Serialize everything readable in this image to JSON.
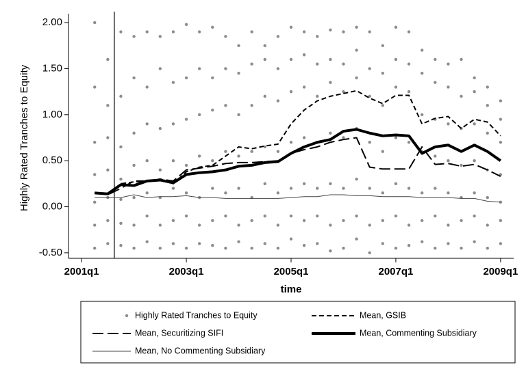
{
  "chart_data": {
    "type": "scatter-line",
    "y_label": "Highly Rated Tranches to Equity",
    "x_label": "time",
    "xlim": [
      -1,
      33
    ],
    "xticks": [
      {
        "value": 0,
        "label": "2001q1"
      },
      {
        "value": 8,
        "label": "2003q1"
      },
      {
        "value": 16,
        "label": "2005q1"
      },
      {
        "value": 24,
        "label": "2007q1"
      },
      {
        "value": 32,
        "label": "2009q1"
      }
    ],
    "ylim": [
      -0.56,
      2.06
    ],
    "yticks": [
      {
        "value": -0.5,
        "label": "-0.50"
      },
      {
        "value": 0,
        "label": "0.00"
      },
      {
        "value": 0.5,
        "label": "0.50"
      },
      {
        "value": 1,
        "label": "1.00"
      },
      {
        "value": 1.5,
        "label": "1.50"
      },
      {
        "value": 2,
        "label": "2.00"
      }
    ],
    "xline": 2.5,
    "grid": false,
    "legend": "bottom",
    "series": [
      {
        "name": "Highly Rated Tranches to Equity",
        "kind": "points",
        "color": "#8c8c8c",
        "x": [
          1,
          1,
          1,
          1,
          1,
          1,
          1,
          2,
          2,
          2,
          2,
          2,
          2,
          2,
          3,
          3,
          3,
          3,
          3,
          3,
          3,
          4,
          4,
          4,
          4,
          4,
          4,
          4,
          5,
          5,
          5,
          5,
          5,
          5,
          5,
          6,
          6,
          6,
          6,
          6,
          6,
          6,
          7,
          7,
          7,
          7,
          7,
          7,
          7,
          8,
          8,
          8,
          8,
          8,
          8,
          8,
          9,
          9,
          9,
          9,
          9,
          9,
          9,
          10,
          10,
          10,
          10,
          10,
          10,
          10,
          11,
          11,
          11,
          11,
          11,
          11,
          11,
          12,
          12,
          12,
          12,
          12,
          12,
          12,
          13,
          13,
          13,
          13,
          13,
          13,
          13,
          14,
          14,
          14,
          14,
          14,
          14,
          14,
          15,
          15,
          15,
          15,
          15,
          15,
          15,
          16,
          16,
          16,
          16,
          16,
          16,
          16,
          17,
          17,
          17,
          17,
          17,
          17,
          17,
          18,
          18,
          18,
          18,
          18,
          18,
          18,
          19,
          19,
          19,
          19,
          19,
          19,
          19,
          20,
          20,
          20,
          20,
          20,
          20,
          20,
          21,
          21,
          21,
          21,
          21,
          21,
          21,
          22,
          22,
          22,
          22,
          22,
          22,
          22,
          23,
          23,
          23,
          23,
          23,
          23,
          23,
          24,
          24,
          24,
          24,
          24,
          24,
          24,
          25,
          25,
          25,
          25,
          25,
          25,
          25,
          26,
          26,
          26,
          26,
          26,
          26,
          26,
          27,
          27,
          27,
          27,
          27,
          27,
          27,
          28,
          28,
          28,
          28,
          28,
          28,
          28,
          29,
          29,
          29,
          29,
          29,
          29,
          29,
          30,
          30,
          30,
          30,
          30,
          30,
          30,
          31,
          31,
          31,
          31,
          31,
          31,
          31,
          32,
          32,
          32,
          32,
          32,
          32,
          32
        ],
        "values": [
          -0.45,
          -0.2,
          0.05,
          0.35,
          0.7,
          1.3,
          2.0,
          -0.4,
          -0.15,
          0.1,
          0.4,
          0.75,
          1.1,
          1.6,
          -0.42,
          -0.18,
          0.08,
          0.3,
          0.65,
          1.2,
          1.9,
          -0.45,
          -0.2,
          0.1,
          0.45,
          0.8,
          1.4,
          1.85,
          -0.38,
          -0.1,
          0.15,
          0.5,
          0.9,
          1.3,
          1.9,
          -0.45,
          -0.2,
          0.1,
          0.4,
          0.85,
          1.5,
          1.85,
          -0.4,
          -0.15,
          0.2,
          0.5,
          0.9,
          1.35,
          1.9,
          -0.45,
          -0.1,
          0.15,
          0.45,
          0.95,
          1.4,
          1.98,
          -0.4,
          -0.2,
          0.1,
          0.55,
          1.0,
          1.5,
          1.9,
          -0.42,
          -0.15,
          0.2,
          0.5,
          1.05,
          1.4,
          1.95,
          -0.45,
          -0.1,
          0.15,
          0.6,
          1.1,
          1.5,
          1.85,
          -0.38,
          -0.2,
          0.2,
          0.55,
          1.0,
          1.45,
          1.75,
          -0.45,
          -0.15,
          0.1,
          0.6,
          1.1,
          1.55,
          1.9,
          -0.4,
          -0.1,
          0.25,
          0.65,
          1.2,
          1.6,
          1.75,
          -0.45,
          -0.2,
          0.15,
          0.6,
          1.15,
          1.5,
          1.85,
          -0.35,
          -0.1,
          0.2,
          0.7,
          1.25,
          1.6,
          1.95,
          -0.42,
          -0.15,
          0.25,
          0.75,
          1.3,
          1.65,
          1.9,
          -0.4,
          -0.1,
          0.2,
          0.7,
          1.2,
          1.55,
          1.85,
          -0.48,
          -0.2,
          0.25,
          0.8,
          1.35,
          1.6,
          1.92,
          -0.45,
          -0.15,
          0.2,
          0.75,
          1.25,
          1.55,
          1.9,
          -0.35,
          -0.1,
          0.3,
          0.85,
          1.4,
          1.7,
          1.95,
          -0.5,
          -0.2,
          0.2,
          0.7,
          1.2,
          1.5,
          1.9,
          -0.4,
          -0.15,
          0.15,
          0.6,
          1.1,
          1.45,
          1.75,
          -0.45,
          -0.1,
          0.25,
          0.75,
          1.3,
          1.6,
          1.95,
          -0.42,
          -0.2,
          0.2,
          0.7,
          1.25,
          1.55,
          1.9,
          -0.38,
          -0.15,
          0.15,
          0.6,
          1.0,
          1.45,
          1.7,
          -0.45,
          -0.1,
          0.2,
          0.55,
          0.95,
          1.35,
          1.6,
          -0.4,
          -0.2,
          0.15,
          0.5,
          0.9,
          1.3,
          1.55,
          -0.45,
          -0.15,
          0.1,
          0.45,
          0.85,
          1.2,
          1.6,
          -0.38,
          -0.1,
          0.15,
          0.5,
          0.9,
          1.25,
          1.4,
          -0.45,
          -0.2,
          0.1,
          0.4,
          0.8,
          1.1,
          1.3,
          -0.4,
          -0.15,
          0.05,
          0.35,
          0.7,
          0.95,
          1.15
        ]
      },
      {
        "name": "Mean, GSIB",
        "kind": "line",
        "color": "#000000",
        "dash": "short",
        "width": 2,
        "x": [
          1,
          2,
          3,
          4,
          5,
          6,
          7,
          8,
          9,
          10,
          11,
          12,
          13,
          14,
          15,
          16,
          17,
          18,
          19,
          20,
          21,
          22,
          23,
          24,
          25,
          26,
          27,
          28,
          29,
          30,
          31,
          32
        ],
        "values": [
          0.15,
          0.14,
          0.25,
          0.27,
          0.28,
          0.3,
          0.25,
          0.38,
          0.43,
          0.45,
          0.55,
          0.65,
          0.63,
          0.66,
          0.68,
          0.9,
          1.05,
          1.15,
          1.2,
          1.23,
          1.26,
          1.18,
          1.12,
          1.21,
          1.21,
          0.9,
          0.96,
          0.98,
          0.85,
          0.95,
          0.92,
          0.77
        ]
      },
      {
        "name": "Mean, Securitizing SIFI",
        "kind": "line",
        "color": "#000000",
        "dash": "long",
        "width": 2,
        "x": [
          1,
          2,
          3,
          4,
          5,
          6,
          7,
          8,
          9,
          10,
          11,
          12,
          13,
          14,
          15,
          16,
          17,
          18,
          19,
          20,
          21,
          22,
          23,
          24,
          25,
          26,
          27,
          28,
          29,
          30,
          31,
          32
        ],
        "values": [
          0.15,
          0.13,
          0.2,
          0.28,
          0.28,
          0.3,
          0.28,
          0.4,
          0.42,
          0.44,
          0.47,
          0.48,
          0.48,
          0.49,
          0.5,
          0.58,
          0.62,
          0.65,
          0.7,
          0.73,
          0.75,
          0.43,
          0.41,
          0.41,
          0.41,
          0.65,
          0.46,
          0.47,
          0.44,
          0.46,
          0.4,
          0.33
        ]
      },
      {
        "name": "Mean, Commenting Subsidiary",
        "kind": "line",
        "color": "#000000",
        "dash": "solid",
        "width": 4,
        "x": [
          1,
          2,
          3,
          4,
          5,
          6,
          7,
          8,
          9,
          10,
          11,
          12,
          13,
          14,
          15,
          16,
          17,
          18,
          19,
          20,
          21,
          22,
          23,
          24,
          25,
          26,
          27,
          28,
          29,
          30,
          31,
          32
        ],
        "values": [
          0.15,
          0.14,
          0.24,
          0.23,
          0.28,
          0.29,
          0.26,
          0.35,
          0.37,
          0.38,
          0.4,
          0.44,
          0.45,
          0.48,
          0.49,
          0.58,
          0.65,
          0.7,
          0.73,
          0.82,
          0.84,
          0.8,
          0.77,
          0.78,
          0.77,
          0.58,
          0.65,
          0.67,
          0.6,
          0.67,
          0.6,
          0.5
        ]
      },
      {
        "name": "Mean, No Commenting Subsidiary",
        "kind": "line",
        "color": "#444444",
        "dash": "solid",
        "width": 1,
        "x": [
          1,
          2,
          3,
          4,
          5,
          6,
          7,
          8,
          9,
          10,
          11,
          12,
          13,
          14,
          15,
          16,
          17,
          18,
          19,
          20,
          21,
          22,
          23,
          24,
          25,
          26,
          27,
          28,
          29,
          30,
          31,
          32
        ],
        "values": [
          0.1,
          0.1,
          0.1,
          0.13,
          0.1,
          0.11,
          0.11,
          0.12,
          0.1,
          0.1,
          0.09,
          0.09,
          0.09,
          0.09,
          0.09,
          0.1,
          0.11,
          0.11,
          0.13,
          0.13,
          0.12,
          0.12,
          0.11,
          0.11,
          0.11,
          0.1,
          0.1,
          0.1,
          0.09,
          0.09,
          0.06,
          0.05
        ]
      }
    ]
  }
}
